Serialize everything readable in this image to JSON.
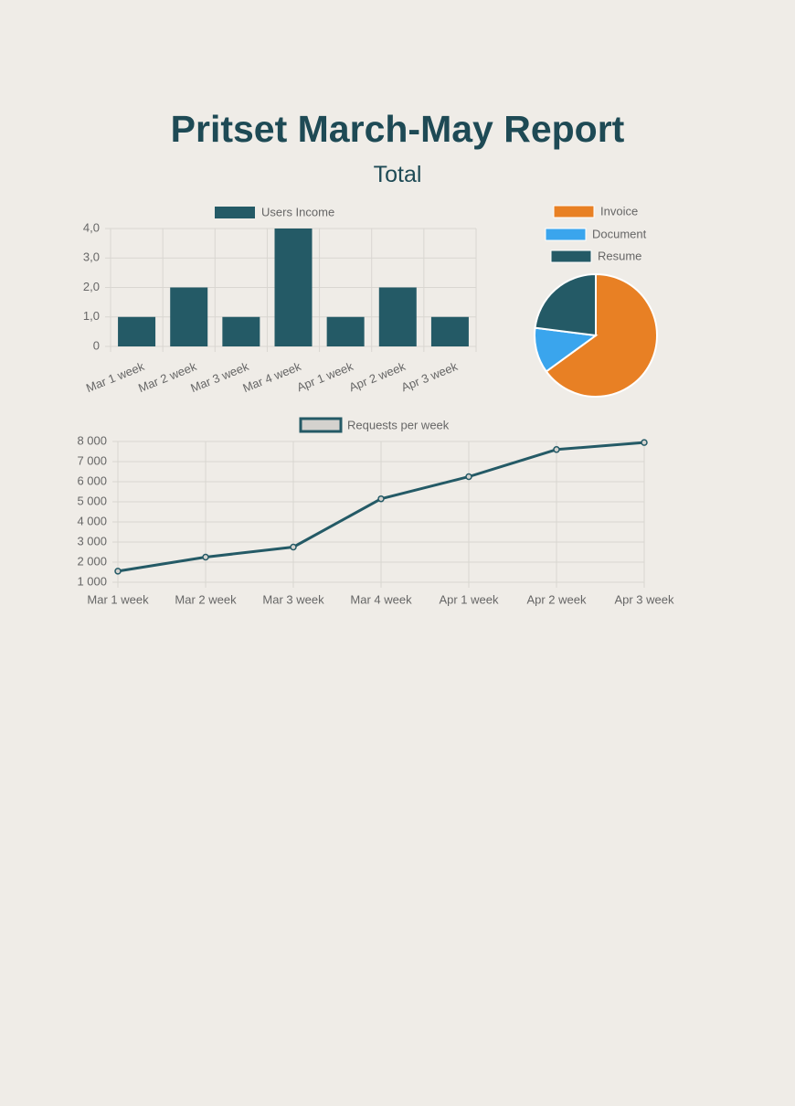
{
  "header": {
    "title": "Pritset March-May Report",
    "subtitle": "Total"
  },
  "colors": {
    "primary": "#245a66",
    "orange": "#e88024",
    "blue": "#3aa5ed",
    "grid": "#d9d6d1",
    "tick_text": "#666666",
    "title": "#1e4a55"
  },
  "chart_data": [
    {
      "type": "bar",
      "categories": [
        "Mar 1 week",
        "Mar 2 week",
        "Mar 3 week",
        "Mar 4 week",
        "Apr 1 week",
        "Apr 2 week",
        "Apr 3 week"
      ],
      "series": [
        {
          "name": "Users Income",
          "values": [
            1,
            2,
            1,
            4,
            1,
            2,
            1
          ],
          "color": "#245a66"
        }
      ],
      "ylim": [
        0,
        4
      ],
      "yticks": [
        "0",
        "1,0",
        "2,0",
        "3,0",
        "4,0"
      ],
      "legend": "top",
      "grid": true
    },
    {
      "type": "pie",
      "slices": [
        {
          "label": "Invoice",
          "value": 65,
          "color": "#e88024"
        },
        {
          "label": "Document",
          "value": 12,
          "color": "#3aa5ed"
        },
        {
          "label": "Resume",
          "value": 23,
          "color": "#245a66"
        }
      ],
      "legend": "top"
    },
    {
      "type": "line",
      "x": [
        "Mar 1 week",
        "Mar 2 week",
        "Mar 3 week",
        "Mar 4 week",
        "Apr 1 week",
        "Apr 2 week",
        "Apr 3 week"
      ],
      "series": [
        {
          "name": "Requests per week",
          "values": [
            1550,
            2250,
            2750,
            5150,
            6250,
            7600,
            7950
          ],
          "color": "#245a66"
        }
      ],
      "ylim": [
        1000,
        8000
      ],
      "yticks": [
        "1 000",
        "2 000",
        "3 000",
        "4 000",
        "5 000",
        "6 000",
        "7 000",
        "8 000"
      ],
      "legend": "top",
      "grid": true
    }
  ]
}
